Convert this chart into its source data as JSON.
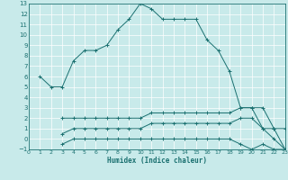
{
  "bg_color": "#c8eaea",
  "grid_color": "#ffffff",
  "line_color": "#1a7070",
  "xlabel": "Humidex (Indice chaleur)",
  "xlim": [
    0,
    23
  ],
  "ylim": [
    -1,
    13
  ],
  "xticks": [
    0,
    1,
    2,
    3,
    4,
    5,
    6,
    7,
    8,
    9,
    10,
    11,
    12,
    13,
    14,
    15,
    16,
    17,
    18,
    19,
    20,
    21,
    22,
    23
  ],
  "yticks": [
    -1,
    0,
    1,
    2,
    3,
    4,
    5,
    6,
    7,
    8,
    9,
    10,
    11,
    12,
    13
  ],
  "curve1_x": [
    1,
    2,
    3,
    4,
    5,
    6,
    7,
    8,
    9,
    10,
    11,
    12,
    13,
    14,
    15,
    16,
    17,
    18,
    19,
    20,
    21,
    22,
    23
  ],
  "curve1_y": [
    6,
    5,
    5,
    7.5,
    8.5,
    8.5,
    9.0,
    10.5,
    11.5,
    13,
    12.5,
    11.5,
    11.5,
    11.5,
    11.5,
    9.5,
    8.5,
    6.5,
    3,
    3,
    3,
    1,
    1
  ],
  "curve2_x": [
    3,
    4,
    5,
    6,
    7,
    8,
    9,
    10,
    11,
    12,
    13,
    14,
    15,
    16,
    17,
    18,
    19,
    20,
    21,
    22,
    23
  ],
  "curve2_y": [
    2,
    2,
    2,
    2,
    2,
    2,
    2,
    2,
    2.5,
    2.5,
    2.5,
    2.5,
    2.5,
    2.5,
    2.5,
    2.5,
    3,
    3,
    1,
    1,
    -1
  ],
  "curve3_x": [
    3,
    4,
    5,
    6,
    7,
    8,
    9,
    10,
    11,
    12,
    13,
    14,
    15,
    16,
    17,
    18,
    19,
    20,
    21,
    22,
    23
  ],
  "curve3_y": [
    0.5,
    1,
    1,
    1,
    1,
    1,
    1,
    1,
    1.5,
    1.5,
    1.5,
    1.5,
    1.5,
    1.5,
    1.5,
    1.5,
    2,
    2,
    1,
    0,
    -1
  ],
  "curve4_x": [
    3,
    4,
    5,
    6,
    7,
    8,
    9,
    10,
    11,
    12,
    13,
    14,
    15,
    16,
    17,
    18,
    19,
    20,
    21,
    22,
    23
  ],
  "curve4_y": [
    -0.5,
    0,
    0,
    0,
    0,
    0,
    0,
    0,
    0,
    0,
    0,
    0,
    0,
    0,
    0,
    0,
    -0.5,
    -1,
    -0.5,
    -1,
    -1
  ]
}
